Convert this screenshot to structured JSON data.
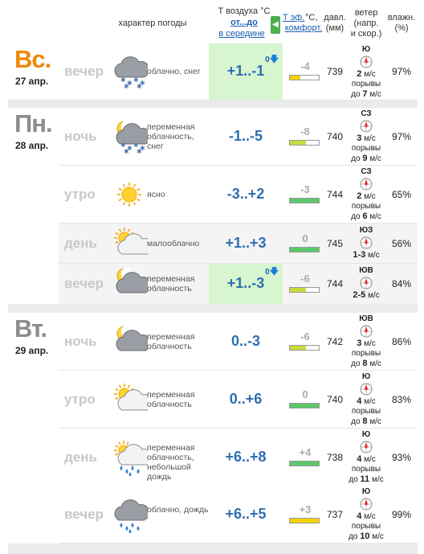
{
  "header": {
    "weather_char": "характер погоды",
    "temp_title": "T воздуха °C",
    "temp_range": "от...до",
    "temp_mid": "в середине",
    "feel_link": "T эф.",
    "feel_unit": "°С,",
    "feel_comfort": "комфорт.",
    "press_title": "давл.",
    "press_unit": "(мм)",
    "wind_title": "ветер",
    "wind_sub1": "(напр.",
    "wind_sub2": "и скор.)",
    "hum_title": "влажн.",
    "hum_unit": "(%)",
    "arrow": "◀"
  },
  "days": [
    {
      "name": "Вс.",
      "date": "27 апр.",
      "color": "#f0860a"
    },
    {
      "name": "Пн.",
      "date": "28 апр.",
      "color": "#8c8c8c"
    },
    {
      "name": "Вт.",
      "date": "29 апр.",
      "color": "#8c8c8c"
    }
  ],
  "rows": [
    {
      "period": "вечер",
      "icon": "cloud-snow-icon",
      "desc": "облачно, снег",
      "temp": "+1..-1",
      "delta": "0",
      "feel": "-4",
      "feel_fill": 0.35,
      "feel_color": "#f5d200",
      "press": "739",
      "wind_dir": "Ю",
      "wind_speed": "2",
      "wind_unit": "м/с",
      "gust_label": "порывы",
      "gust_pre": "до",
      "gust": "7",
      "hum": "97%"
    },
    {
      "period": "ночь",
      "icon": "moon-cloud-snow-icon",
      "desc": "переменная облачность, снег",
      "temp": "-1..-5",
      "delta": "",
      "feel": "-8",
      "feel_fill": 0.55,
      "feel_color": "#c8dc3c",
      "press": "740",
      "wind_dir": "СЗ",
      "wind_speed": "3",
      "wind_unit": "м/с",
      "gust_label": "порывы",
      "gust_pre": "до",
      "gust": "9",
      "hum": "97%"
    },
    {
      "period": "утро",
      "icon": "sun-icon",
      "desc": "ясно",
      "temp": "-3..+2",
      "delta": "",
      "feel": "-3",
      "feel_fill": 1,
      "feel_color": "#5cc86a",
      "press": "744",
      "wind_dir": "СЗ",
      "wind_speed": "2",
      "wind_unit": "м/с",
      "gust_label": "порывы",
      "gust_pre": "до",
      "gust": "6",
      "hum": "65%"
    },
    {
      "period": "день",
      "icon": "sun-cloud-icon",
      "desc": "малооблачно",
      "temp": "+1..+3",
      "delta": "",
      "feel": "0",
      "feel_fill": 1,
      "feel_color": "#5cc86a",
      "press": "745",
      "wind_dir": "ЮЗ",
      "wind_speed": "1-3",
      "wind_unit": "м/с",
      "gust_label": "",
      "gust_pre": "",
      "gust": "",
      "hum": "56%"
    },
    {
      "period": "вечер",
      "icon": "moon-cloud-icon",
      "desc": "переменная облачность",
      "temp": "+1..-3",
      "delta": "0",
      "feel": "-6",
      "feel_fill": 0.55,
      "feel_color": "#c8dc3c",
      "press": "744",
      "wind_dir": "ЮВ",
      "wind_speed": "2-5",
      "wind_unit": "м/с",
      "gust_label": "",
      "gust_pre": "",
      "gust": "",
      "hum": "84%"
    },
    {
      "period": "ночь",
      "icon": "moon-cloud-icon",
      "desc": "переменная облачность",
      "temp": "0..-3",
      "delta": "",
      "feel": "-6",
      "feel_fill": 0.55,
      "feel_color": "#c8dc3c",
      "press": "742",
      "wind_dir": "ЮВ",
      "wind_speed": "3",
      "wind_unit": "м/с",
      "gust_label": "порывы",
      "gust_pre": "до",
      "gust": "8",
      "hum": "86%"
    },
    {
      "period": "утро",
      "icon": "sun-cloud-icon",
      "desc": "переменная облачность",
      "temp": "0..+6",
      "delta": "",
      "feel": "0",
      "feel_fill": 1,
      "feel_color": "#5cc86a",
      "press": "740",
      "wind_dir": "Ю",
      "wind_speed": "4",
      "wind_unit": "м/с",
      "gust_label": "порывы",
      "gust_pre": "до",
      "gust": "8",
      "hum": "83%"
    },
    {
      "period": "день",
      "icon": "sun-cloud-rain-icon",
      "desc": "переменная облачность, небольшой дождь",
      "temp": "+6..+8",
      "delta": "",
      "feel": "+4",
      "feel_fill": 1,
      "feel_color": "#5cc86a",
      "press": "738",
      "wind_dir": "Ю",
      "wind_speed": "4",
      "wind_unit": "м/с",
      "gust_label": "порывы",
      "gust_pre": "до",
      "gust": "11",
      "hum": "93%"
    },
    {
      "period": "вечер",
      "icon": "cloud-rain-icon",
      "desc": "облачно, дождь",
      "temp": "+6..+5",
      "delta": "",
      "feel": "+3",
      "feel_fill": 1,
      "feel_color": "#f5d200",
      "press": "737",
      "wind_dir": "Ю",
      "wind_speed": "4",
      "wind_unit": "м/с",
      "gust_label": "порывы",
      "gust_pre": "до",
      "gust": "10",
      "hum": "99%"
    }
  ]
}
